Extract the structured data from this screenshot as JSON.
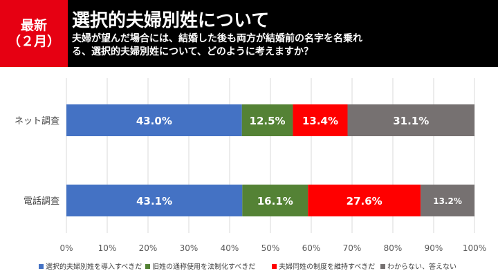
{
  "header": {
    "badge_line1": "最新",
    "badge_line2": "（２月）",
    "title": "選択的夫婦別姓について",
    "question": "夫婦が望んだ場合には、結婚した後も両方が結婚前の名字を名乗れる、選択的夫婦別姓について、どのように考えますか？"
  },
  "colors": {
    "header_bg": "#000000",
    "badge_bg": "#e60012",
    "series": [
      "#4472c4",
      "#548235",
      "#ff0000",
      "#767171"
    ]
  },
  "chart_data": {
    "type": "bar",
    "orientation": "horizontal",
    "stacked": true,
    "normalized": true,
    "categories": [
      "ネット調査",
      "電話調査"
    ],
    "series": [
      {
        "name": "選択的夫婦別姓を導入すべきだ",
        "values": [
          43.0,
          43.1
        ],
        "labels": [
          "43.0%",
          "43.1%"
        ]
      },
      {
        "name": "旧姓の通称使用を法制化すべきだ",
        "values": [
          12.5,
          16.1
        ],
        "labels": [
          "12.5%",
          "16.1%"
        ]
      },
      {
        "name": "夫婦同姓の制度を維持すべきだ",
        "values": [
          13.4,
          27.6
        ],
        "labels": [
          "13.4%",
          "27.6%"
        ]
      },
      {
        "name": "わからない、答えない",
        "values": [
          31.1,
          13.2
        ],
        "labels": [
          "31.1%",
          "13.2%"
        ]
      }
    ],
    "xlim": [
      0,
      100
    ],
    "xticks": [
      "0%",
      "10%",
      "20%",
      "30%",
      "40%",
      "50%",
      "60%",
      "70%",
      "80%",
      "90%",
      "100%"
    ],
    "grid": true,
    "legend": "bottom"
  }
}
